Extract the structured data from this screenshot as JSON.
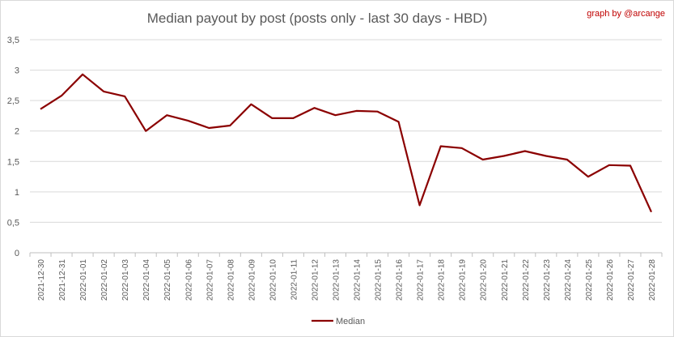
{
  "chart_data": {
    "type": "line",
    "title": "Median payout by post (posts only - last 30 days - HBD)",
    "credit": "graph by @arcange",
    "xlabel": "",
    "ylabel": "",
    "ylim": [
      0,
      3.5
    ],
    "yticks": [
      "0",
      "0,5",
      "1",
      "1,5",
      "2",
      "2,5",
      "3",
      "3,5"
    ],
    "grid": true,
    "legend_position": "bottom",
    "line_color": "#8b0000",
    "categories": [
      "2021-12-30",
      "2021-12-31",
      "2022-01-01",
      "2022-01-02",
      "2022-01-03",
      "2022-01-04",
      "2022-01-05",
      "2022-01-06",
      "2022-01-07",
      "2022-01-08",
      "2022-01-09",
      "2022-01-10",
      "2022-01-11",
      "2022-01-12",
      "2022-01-13",
      "2022-01-14",
      "2022-01-15",
      "2022-01-16",
      "2022-01-17",
      "2022-01-18",
      "2022-01-19",
      "2022-01-20",
      "2022-01-21",
      "2022-01-22",
      "2022-01-23",
      "2022-01-24",
      "2022-01-25",
      "2022-01-26",
      "2022-01-27",
      "2022-01-28"
    ],
    "series": [
      {
        "name": "Median",
        "values": [
          2.36,
          2.58,
          2.93,
          2.65,
          2.57,
          2.0,
          2.26,
          2.17,
          2.05,
          2.09,
          2.44,
          2.21,
          2.21,
          2.38,
          2.26,
          2.33,
          2.32,
          2.15,
          0.78,
          1.75,
          1.72,
          1.53,
          1.59,
          1.67,
          1.59,
          1.53,
          1.25,
          1.44,
          1.43,
          0.67
        ]
      }
    ]
  }
}
